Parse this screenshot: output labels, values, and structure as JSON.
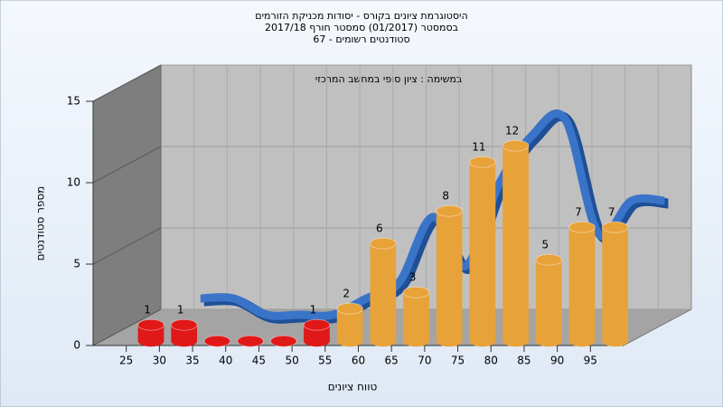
{
  "chart_data": {
    "type": "histogram",
    "title": [
      "היסטוגרמת ציונים בקורס - יסודות מכניקת הזורמים",
      "בסמסטר  (01/2017)  סמסטר חורף 2017/18",
      "סטודנטים רשומים - 67"
    ],
    "subtitle": "במשימה : ציון סופי במחשב המרכזי",
    "x_label": "טווח ציונים",
    "y_label": "מספר סטודנטים",
    "bins": [
      25,
      30,
      35,
      40,
      45,
      50,
      55,
      60,
      65,
      70,
      75,
      80,
      85,
      90,
      95,
      100
    ],
    "values": [
      1,
      1,
      0,
      0,
      0,
      1,
      2,
      6,
      3,
      8,
      11,
      12,
      5,
      7,
      7
    ],
    "colors": [
      "#e01818",
      "#e01818",
      "#e01818",
      "#e01818",
      "#e01818",
      "#e01818",
      "#e8a23a",
      "#e8a23a",
      "#e8a23a",
      "#e8a23a",
      "#e8a23a",
      "#e8a23a",
      "#e8a23a",
      "#e8a23a",
      "#e8a23a"
    ],
    "curve_color": "#3a74c8",
    "xlim": [
      20,
      100
    ],
    "xticks": [
      25,
      30,
      35,
      40,
      45,
      50,
      55,
      60,
      65,
      70,
      75,
      80,
      85,
      90,
      95
    ],
    "ylim": [
      0,
      15
    ],
    "yticks": [
      0,
      5,
      10,
      15
    ],
    "grid": true
  }
}
